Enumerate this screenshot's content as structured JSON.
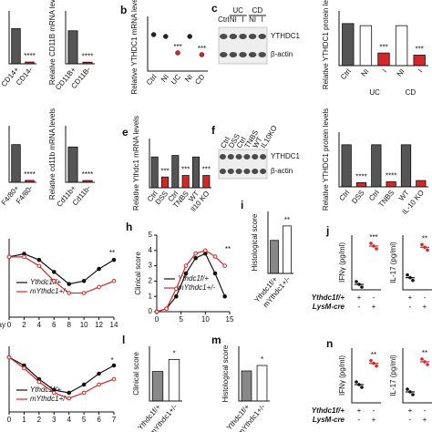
{
  "panels": [
    {
      "type": "bar",
      "categories": [
        "CD14+",
        "CD14-"
      ],
      "values": [
        1.0,
        0.05
      ],
      "colors": [
        "#555555",
        "#d62728"
      ],
      "annotations": [
        null,
        "****"
      ],
      "ylim": [
        0,
        1.5
      ]
    },
    {
      "type": "bar",
      "ylabel": "Relative CD11B mRNA levels",
      "categories": [
        "CD11B+",
        "CD11B-"
      ],
      "values": [
        1.0,
        0.05
      ],
      "colors": [
        "#555555",
        "#d62728"
      ],
      "annotations": [
        null,
        "****"
      ],
      "ylim": [
        0,
        1.6
      ]
    },
    {
      "type": "dot",
      "letter": "b",
      "ylabel": "Relative YTHDC1 mRNA levels",
      "categories": [
        "Ctrl",
        "NI",
        "UC",
        "NI",
        "CD"
      ],
      "values": [
        1.0,
        0.95,
        0.5,
        0.95,
        0.45
      ],
      "colors": [
        "#222222",
        "#222222",
        "#d62728",
        "#222222",
        "#d62728"
      ],
      "annotations": [
        null,
        null,
        "***",
        null,
        "***"
      ],
      "ylim": [
        0,
        1.5
      ]
    },
    {
      "type": "blot",
      "letter": "c",
      "group_labels": [
        "UC",
        "CD"
      ],
      "lanes": [
        "Ctrl",
        "NI",
        "I",
        "NI",
        "I"
      ],
      "bands": [
        "YTHDC1",
        "β-actin"
      ]
    },
    {
      "type": "bar",
      "ylabel": "Relative YTHDC1 protein levels",
      "categories": [
        "Ctrl",
        "NI",
        "I",
        "NI",
        "I"
      ],
      "group_labels": [
        "UC",
        "CD"
      ],
      "values": [
        1.0,
        0.95,
        0.3,
        0.95,
        0.25
      ],
      "colors": [
        "#555555",
        "#ffffff",
        "#d62728",
        "#ffffff",
        "#d62728"
      ],
      "annotations": [
        null,
        null,
        "***",
        null,
        "***"
      ],
      "ylim": [
        0,
        1.3
      ]
    },
    {
      "type": "bar",
      "categories": [
        "F4/80+",
        "F4/80-"
      ],
      "values": [
        1.0,
        0.05
      ],
      "colors": [
        "#555555",
        "#d62728"
      ],
      "annotations": [
        null,
        "****"
      ],
      "ylim": [
        0,
        1.5
      ]
    },
    {
      "type": "bar",
      "ylabel": "Relative cd11b mRNA levels",
      "categories": [
        "Cd11b+",
        "Cd11b-"
      ],
      "values": [
        1.0,
        0.05
      ],
      "colors": [
        "#555555",
        "#d62728"
      ],
      "annotations": [
        null,
        "****"
      ],
      "ylim": [
        0,
        1.6
      ]
    },
    {
      "type": "bar",
      "letter": "e",
      "ylabel": "Relative Ythdc1 mRNA levels",
      "categories": [
        "Ctrl",
        "DSS",
        "Ctrl",
        "TNBS",
        "WT",
        "Il10 KO"
      ],
      "values": [
        1.0,
        0.35,
        1.05,
        0.4,
        1.0,
        0.4
      ],
      "colors": [
        "#555555",
        "#d62728",
        "#555555",
        "#d62728",
        "#555555",
        "#d62728"
      ],
      "annotations": [
        null,
        "***",
        null,
        "***",
        null,
        "***"
      ],
      "ylim": [
        0,
        1.6
      ]
    },
    {
      "type": "blot",
      "letter": "f",
      "lanes": [
        "Ctrl",
        "DSS",
        "Ctrl",
        "TNBS",
        "WT",
        "IL10KO"
      ],
      "bands": [
        "YTHDC1",
        "β-actin"
      ]
    },
    {
      "type": "bar",
      "ylabel": "Relative YTHDC1 protein levels",
      "categories": [
        "Ctrl",
        "DSS",
        "Ctrl",
        "TNBS",
        "WT",
        "IL-10 KO"
      ],
      "values": [
        1.0,
        0.1,
        1.0,
        0.12,
        1.0,
        0.15
      ],
      "colors": [
        "#555555",
        "#d62728",
        "#555555",
        "#d62728",
        "#555555",
        "#d62728"
      ],
      "annotations": [
        null,
        "****",
        null,
        "****",
        null,
        null
      ],
      "ylim": [
        0,
        1.3
      ]
    },
    {
      "type": "line",
      "xlabel": "day",
      "x": [
        0,
        2,
        4,
        6,
        8,
        10,
        12,
        14
      ],
      "xlim": [
        0,
        14
      ],
      "xticks": [
        0,
        2,
        4,
        6,
        8,
        10,
        12,
        14
      ],
      "ylim": [
        80,
        106
      ],
      "series": [
        {
          "name": "Ythdc1f/+",
          "color": "#111111",
          "values": [
            100,
            101,
            99,
            95,
            91,
            92,
            96,
            99
          ]
        },
        {
          "name": "mYthdc1+/-",
          "color": "#d62728",
          "values": [
            100,
            100,
            97,
            92,
            88,
            88,
            90,
            92
          ]
        }
      ],
      "annotation": "**"
    },
    {
      "type": "line",
      "letter": "h",
      "ylabel": "Clinical score",
      "x": [
        0,
        2,
        4,
        6,
        8,
        10,
        12,
        14
      ],
      "xlim": [
        0,
        15
      ],
      "xticks": [
        0,
        5,
        10,
        15
      ],
      "ylim": [
        0,
        5
      ],
      "yticks": [
        0,
        1,
        2,
        3,
        4,
        5
      ],
      "series": [
        {
          "name": "Ythdc1f/+",
          "color": "#111111",
          "values": [
            0,
            0.2,
            1,
            2.5,
            3.5,
            3.8,
            2.5,
            1
          ]
        },
        {
          "name": "mYthdc1+/-",
          "color": "#d62728",
          "values": [
            0,
            0.2,
            1.5,
            3,
            3.8,
            4,
            3.6,
            3
          ]
        }
      ],
      "annotation": "**"
    },
    {
      "type": "bar",
      "letter": "i",
      "ylabel": "Histological score",
      "categories": [
        "Ythdc1f/+",
        "mYthdc1+/-"
      ],
      "values": [
        3.2,
        4.6
      ],
      "colors": [
        "#888888",
        "#ffffff"
      ],
      "annotations": [
        null,
        "**"
      ],
      "ylim": [
        0,
        6
      ]
    },
    {
      "type": "genotype",
      "letter": "j",
      "charts": [
        {
          "ylabel": "IFNγ (pg/ml)",
          "values": [
            5,
            40
          ],
          "annotations": [
            null,
            "***"
          ],
          "ylim": [
            0,
            50
          ]
        },
        {
          "ylabel": "IL-17 (pg/ml)",
          "values": [
            10,
            35
          ],
          "annotations": [
            null,
            "**"
          ],
          "ylim": [
            0,
            45
          ]
        }
      ],
      "rows": [
        {
          "name": "Ythdc1f/+",
          "cells": [
            "+",
            "-"
          ]
        },
        {
          "name": "LysM-cre",
          "cells": [
            "-",
            "+"
          ]
        }
      ]
    },
    {
      "type": "line",
      "x": [
        0,
        1,
        2,
        3,
        4,
        5,
        6,
        7
      ],
      "xlim": [
        0,
        7
      ],
      "xticks": [
        0,
        1,
        2,
        3,
        4,
        5,
        6,
        7
      ],
      "ylim": [
        80,
        104
      ],
      "series": [
        {
          "name": "Ythdc1f/+",
          "color": "#111111",
          "values": [
            100,
            97,
            92,
            88,
            87,
            90,
            94,
            97
          ]
        },
        {
          "name": "mYthdc1+/-",
          "color": "#d62728",
          "values": [
            100,
            96,
            91,
            87,
            85,
            87,
            90,
            92
          ]
        }
      ],
      "annotation": "*"
    },
    {
      "type": "bar",
      "letter": "l",
      "ylabel": "Clinical score",
      "categories": [
        "Ythdc1f/+",
        "mYthdc1+/-"
      ],
      "values": [
        2.7,
        3.8
      ],
      "colors": [
        "#888888",
        "#ffffff"
      ],
      "annotations": [
        null,
        "*"
      ],
      "ylim": [
        0,
        5
      ]
    },
    {
      "type": "bar",
      "letter": "m",
      "ylabel": "Histological score",
      "categories": [
        "Ythdc1f/+",
        "mYthdc1+/-"
      ],
      "values": [
        2.2,
        2.6
      ],
      "colors": [
        "#888888",
        "#ffffff"
      ],
      "annotations": [
        null,
        "*"
      ],
      "ylim": [
        0,
        4
      ]
    },
    {
      "type": "genotype",
      "letter": "n",
      "charts": [
        {
          "ylabel": "IFNγ (pg/ml)",
          "values": [
            30,
            65
          ],
          "annotations": [
            null,
            "**"
          ],
          "ylim": [
            0,
            90
          ]
        },
        {
          "ylabel": "IL-17 (pg/ml)",
          "values": [
            40,
            150
          ],
          "annotations": [
            null,
            "**"
          ],
          "ylim": [
            0,
            200
          ]
        }
      ],
      "rows": [
        {
          "name": "Ythdc1f/+",
          "cells": [
            "+",
            "-"
          ]
        },
        {
          "name": "LysM-cre",
          "cells": [
            "-",
            "+"
          ]
        }
      ]
    }
  ]
}
